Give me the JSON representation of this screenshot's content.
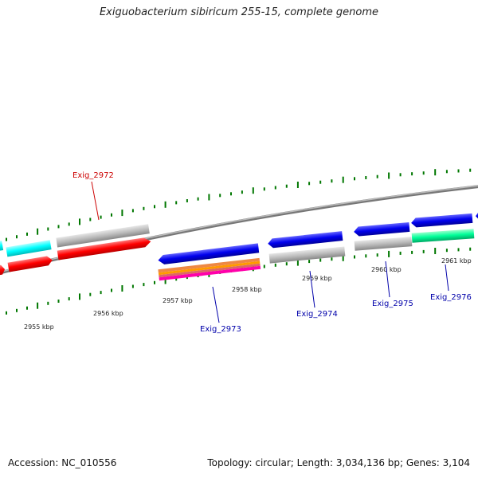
{
  "title": "Exiguobacterium sibiricum 255-15, complete genome",
  "footer": {
    "accession": "Accession: NC_010556",
    "stats": "Topology: circular; Length: 3,034,136 bp; Genes: 3,104"
  },
  "ruler": [
    "2955 kbp",
    "2956 kbp",
    "2957 kbp",
    "2958 kbp",
    "2959 kbp",
    "2960 kbp",
    "2961 kbp"
  ],
  "genes": [
    {
      "name": "Exig_2972",
      "color": "#cc0000"
    },
    {
      "name": "Exig_2973",
      "color": "#0000aa"
    },
    {
      "name": "Exig_2974",
      "color": "#0000aa"
    },
    {
      "name": "Exig_2975",
      "color": "#0000aa"
    },
    {
      "name": "Exig_2976",
      "color": "#0000aa"
    }
  ],
  "colors": {
    "red": "#ff0000",
    "blue": "#0000ee",
    "cyan": "#00ffff",
    "grey": "#bbbbbb",
    "teal": "#00ff99",
    "magenta": "#ff00aa",
    "orange": "#ff9900",
    "backbone": "#888888",
    "ticks": "#007700"
  }
}
